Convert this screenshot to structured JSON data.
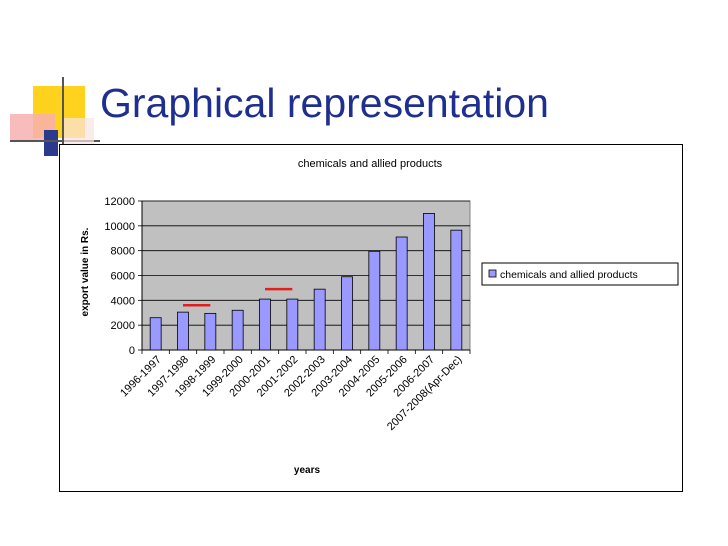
{
  "slide": {
    "title": "Graphical representation"
  },
  "colors": {
    "title": "#1f2f8f",
    "bar_fill": "#9999ff",
    "plot_bg": "#c0c0c0",
    "marker": "#e02020",
    "deco_yellow": "#ffd21e",
    "deco_pink": "#f7b0b0",
    "deco_blue": "#2b3a8f"
  },
  "chart_data": {
    "type": "bar",
    "title": "chemicals and allied products",
    "xlabel": "years",
    "ylabel": "export value in Rs.",
    "categories": [
      "1996-1997",
      "1997-1998",
      "1998-1999",
      "1999-2000",
      "2000-2001",
      "2001-2002",
      "2002-2003",
      "2003-2004",
      "2004-2005",
      "2005-2006",
      "2006-2007",
      "2007-2008(Apr-Dec)"
    ],
    "series": [
      {
        "name": "chemicals and allied products",
        "values": [
          2600,
          3050,
          2950,
          3200,
          4100,
          4100,
          4900,
          5900,
          7950,
          9100,
          11000,
          9650
        ]
      }
    ],
    "ylim": [
      0,
      12000
    ],
    "yticks": [
      0,
      2000,
      4000,
      6000,
      8000,
      10000,
      12000
    ],
    "grid": true,
    "legend": "right",
    "annotations": [
      {
        "type": "marker-line",
        "from_category": "1997-1998",
        "to_category": "1998-1999",
        "y": 3600
      },
      {
        "type": "marker-line",
        "from_category": "2000-2001",
        "to_category": "2001-2002",
        "y": 4900
      }
    ]
  }
}
